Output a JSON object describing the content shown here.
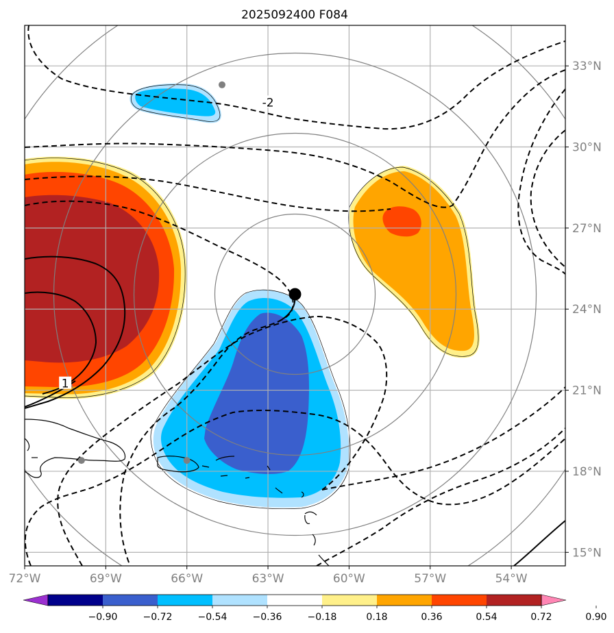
{
  "title": "2025092400 F084",
  "map": {
    "lon_range": [
      -72,
      -52
    ],
    "lat_range": [
      14.5,
      34.5
    ],
    "lon_ticks": [
      {
        "lon": -72,
        "label": "72°W"
      },
      {
        "lon": -69,
        "label": "69°W"
      },
      {
        "lon": -66,
        "label": "66°W"
      },
      {
        "lon": -63,
        "label": "63°W"
      },
      {
        "lon": -60,
        "label": "60°W"
      },
      {
        "lon": -57,
        "label": "57°W"
      },
      {
        "lon": -54,
        "label": "54°W"
      }
    ],
    "lat_ticks": [
      {
        "lat": 33,
        "label": "33°N"
      },
      {
        "lat": 30,
        "label": "30°N"
      },
      {
        "lat": 27,
        "label": "27°N"
      },
      {
        "lat": 24,
        "label": "24°N"
      },
      {
        "lat": 21,
        "label": "21°N"
      },
      {
        "lat": 18,
        "label": "18°N"
      },
      {
        "lat": 15,
        "label": "15°N"
      }
    ],
    "gridlines": true,
    "storm_center": {
      "lon": -62.0,
      "lat": 24.5
    },
    "range_rings_center": {
      "lon": -62.0,
      "lat": 24.5
    },
    "contour_labels": [
      {
        "text": "-2",
        "lon": -63.0,
        "lat": 31.6
      },
      {
        "text": "1",
        "lon": -70.5,
        "lat": 21.2
      }
    ],
    "station_markers": [
      {
        "lon": -64.7,
        "lat": 32.3
      },
      {
        "lon": -69.9,
        "lat": 18.4
      },
      {
        "lon": -66.0,
        "lat": 18.4
      }
    ],
    "colors": {
      "grid": "#b0b0b0",
      "ring": "#808080",
      "frame": "#000000"
    }
  },
  "colorbar": {
    "levels": [
      "−0.90",
      "−0.72",
      "−0.54",
      "−0.36",
      "−0.18",
      "0.18",
      "0.36",
      "0.54",
      "0.72",
      "0.90"
    ],
    "colors": [
      "#9b30d0",
      "#00008b",
      "#3a5fcd",
      "#00bfff",
      "#b0e2ff",
      "#ffffff",
      "#fff08a",
      "#ffa500",
      "#ff4500",
      "#b22222",
      "#ff86b4"
    ],
    "extend": "both"
  }
}
